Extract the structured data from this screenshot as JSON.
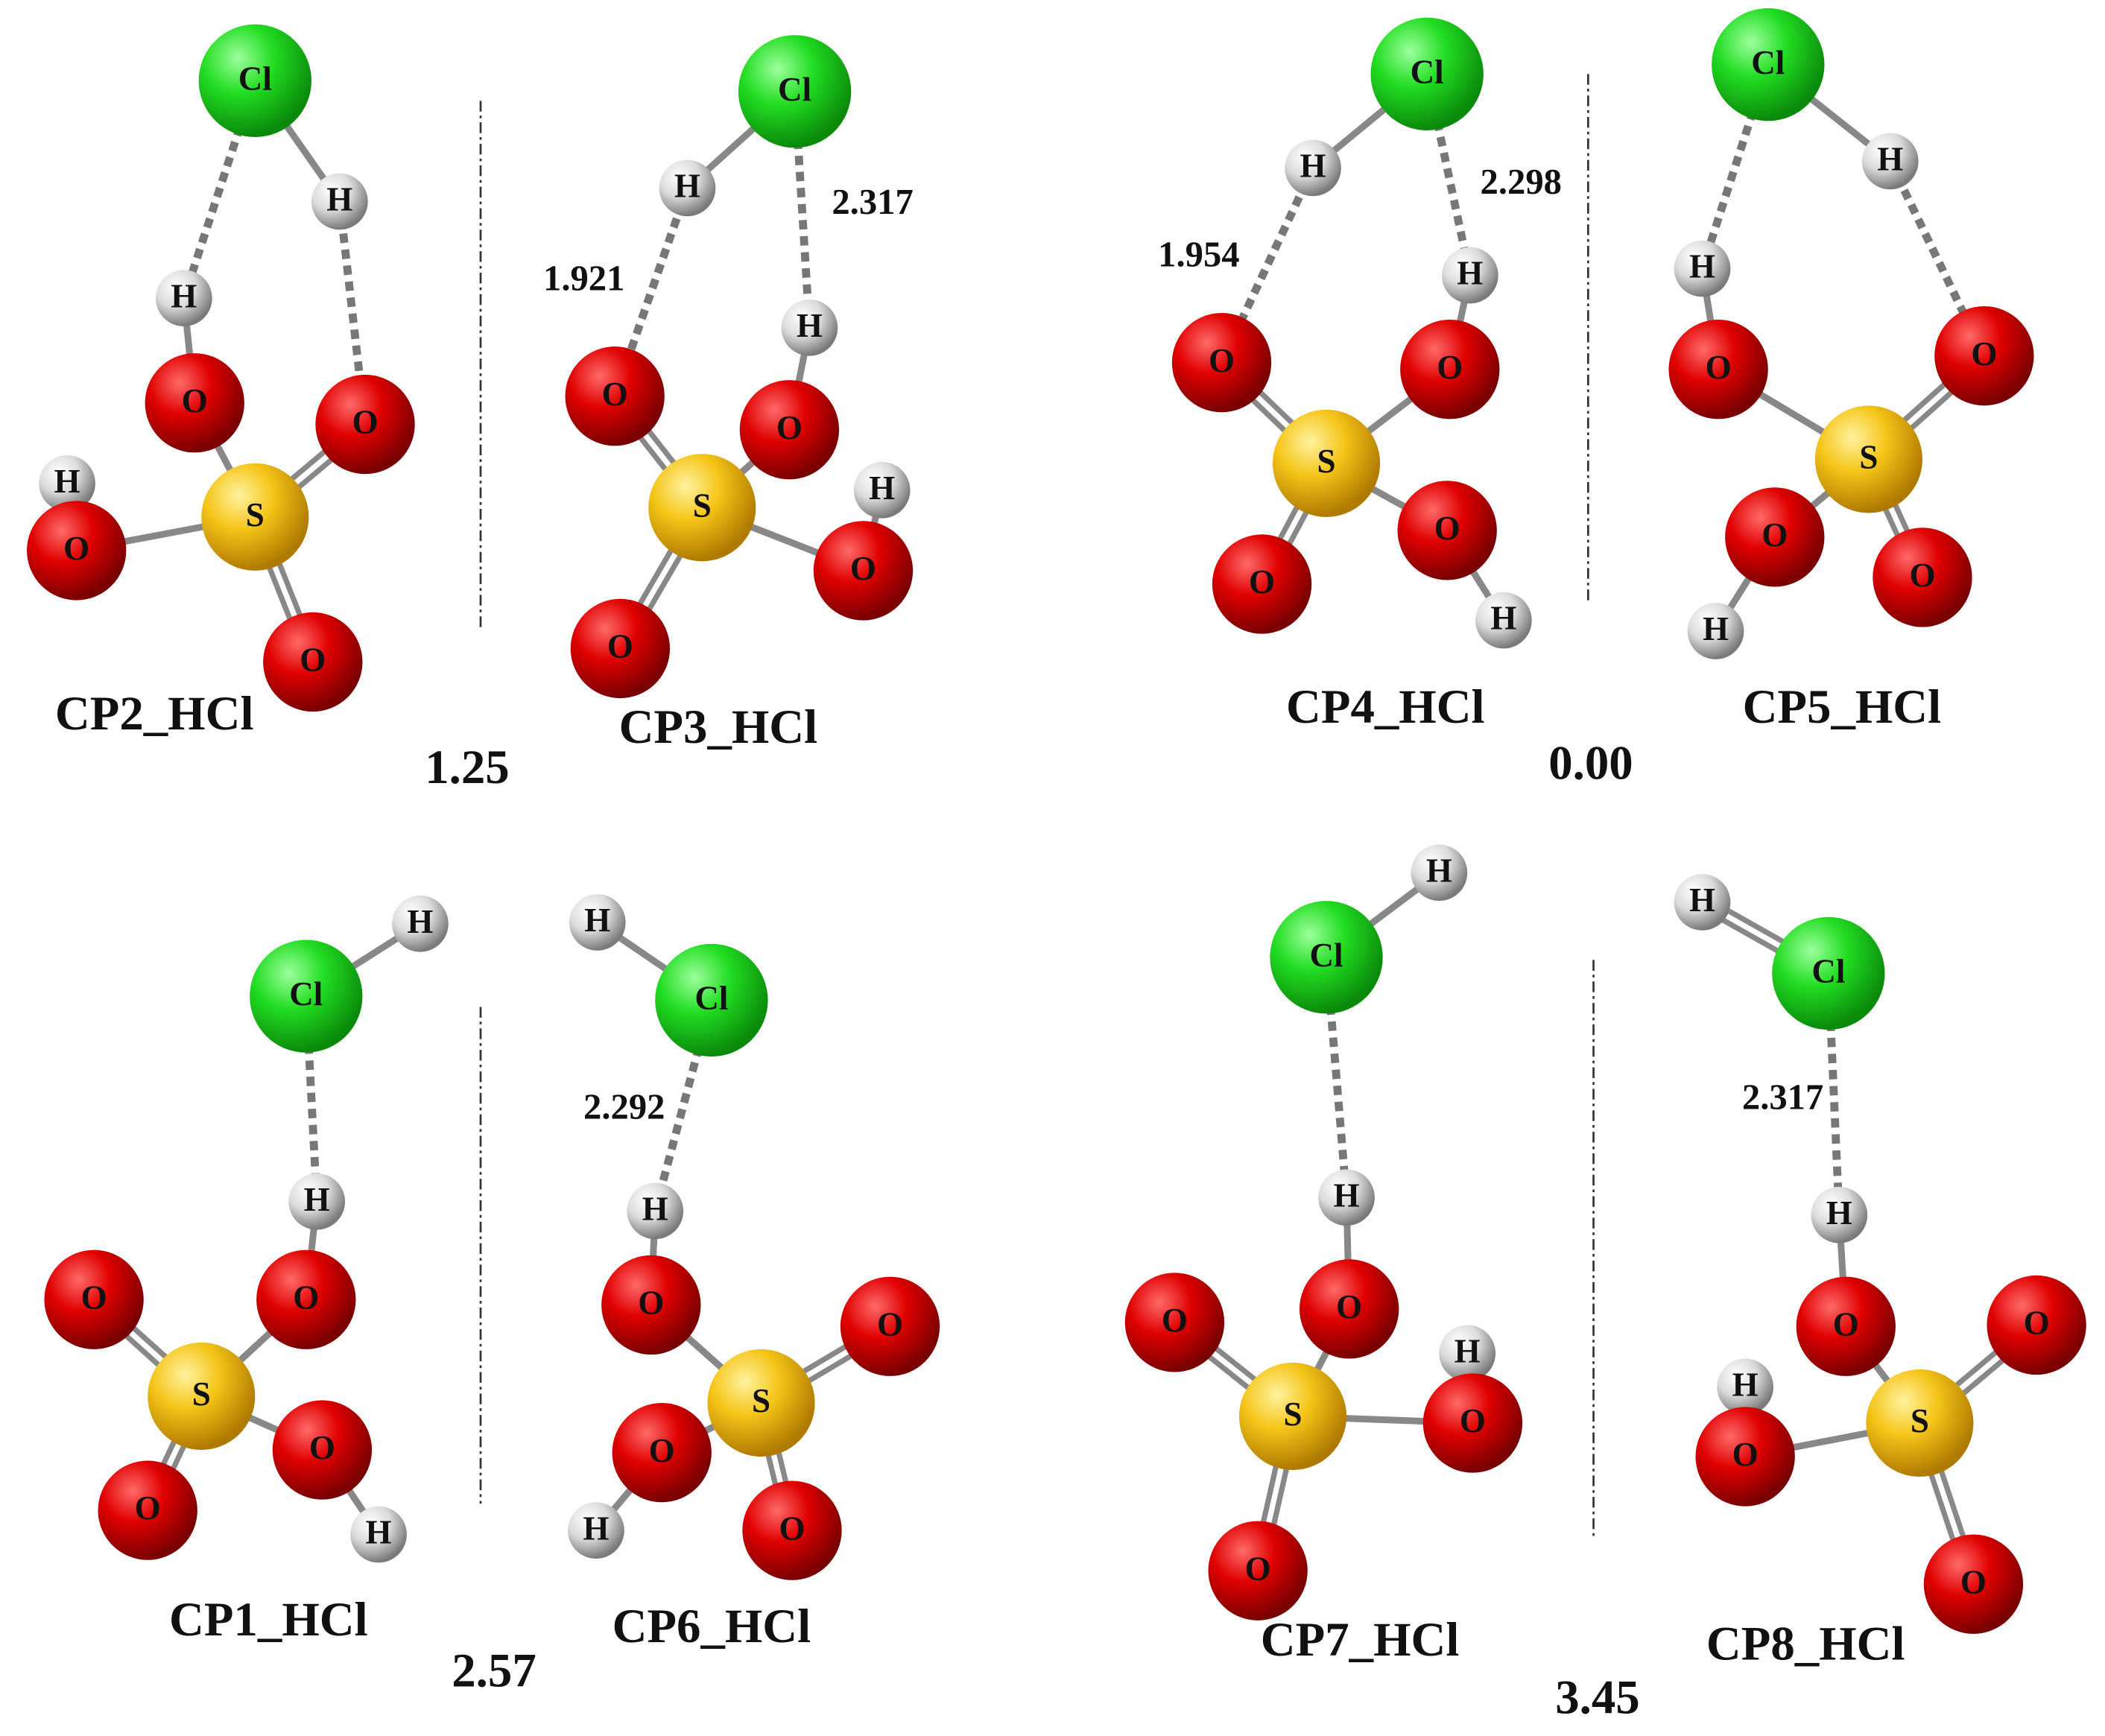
{
  "molecules": [
    {
      "label": "CP2_HCl",
      "atoms": [
        "Cl",
        "H",
        "H",
        "O",
        "O",
        "H",
        "S",
        "O",
        "O"
      ],
      "distances": []
    },
    {
      "label": "CP3_HCl",
      "atoms": [
        "Cl",
        "H",
        "O",
        "H",
        "O",
        "S",
        "H",
        "O",
        "O"
      ],
      "distances": [
        "1.921",
        "2.317"
      ]
    },
    {
      "label": "CP4_HCl",
      "atoms": [
        "Cl",
        "H",
        "H",
        "O",
        "O",
        "S",
        "O",
        "O",
        "H"
      ],
      "distances": [
        "1.954",
        "2.298"
      ]
    },
    {
      "label": "CP5_HCl",
      "atoms": [
        "Cl",
        "H",
        "H",
        "O",
        "O",
        "S",
        "O",
        "O",
        "H"
      ],
      "distances": []
    },
    {
      "label": "CP1_HCl",
      "atoms": [
        "H",
        "Cl",
        "H",
        "O",
        "O",
        "S",
        "O",
        "O",
        "H"
      ],
      "distances": []
    },
    {
      "label": "CP6_HCl",
      "atoms": [
        "H",
        "Cl",
        "H",
        "O",
        "O",
        "S",
        "O",
        "H",
        "O"
      ],
      "distances": [
        "2.292"
      ]
    },
    {
      "label": "CP7_HCl",
      "atoms": [
        "H",
        "Cl",
        "H",
        "O",
        "O",
        "H",
        "S",
        "O",
        "O"
      ],
      "distances": []
    },
    {
      "label": "CP8_HCl",
      "atoms": [
        "H",
        "Cl",
        "H",
        "O",
        "O",
        "H",
        "S",
        "O",
        "O"
      ],
      "distances": [
        "2.317"
      ]
    }
  ],
  "energies": [
    "1.25",
    "0.00",
    "2.57",
    "3.45"
  ]
}
